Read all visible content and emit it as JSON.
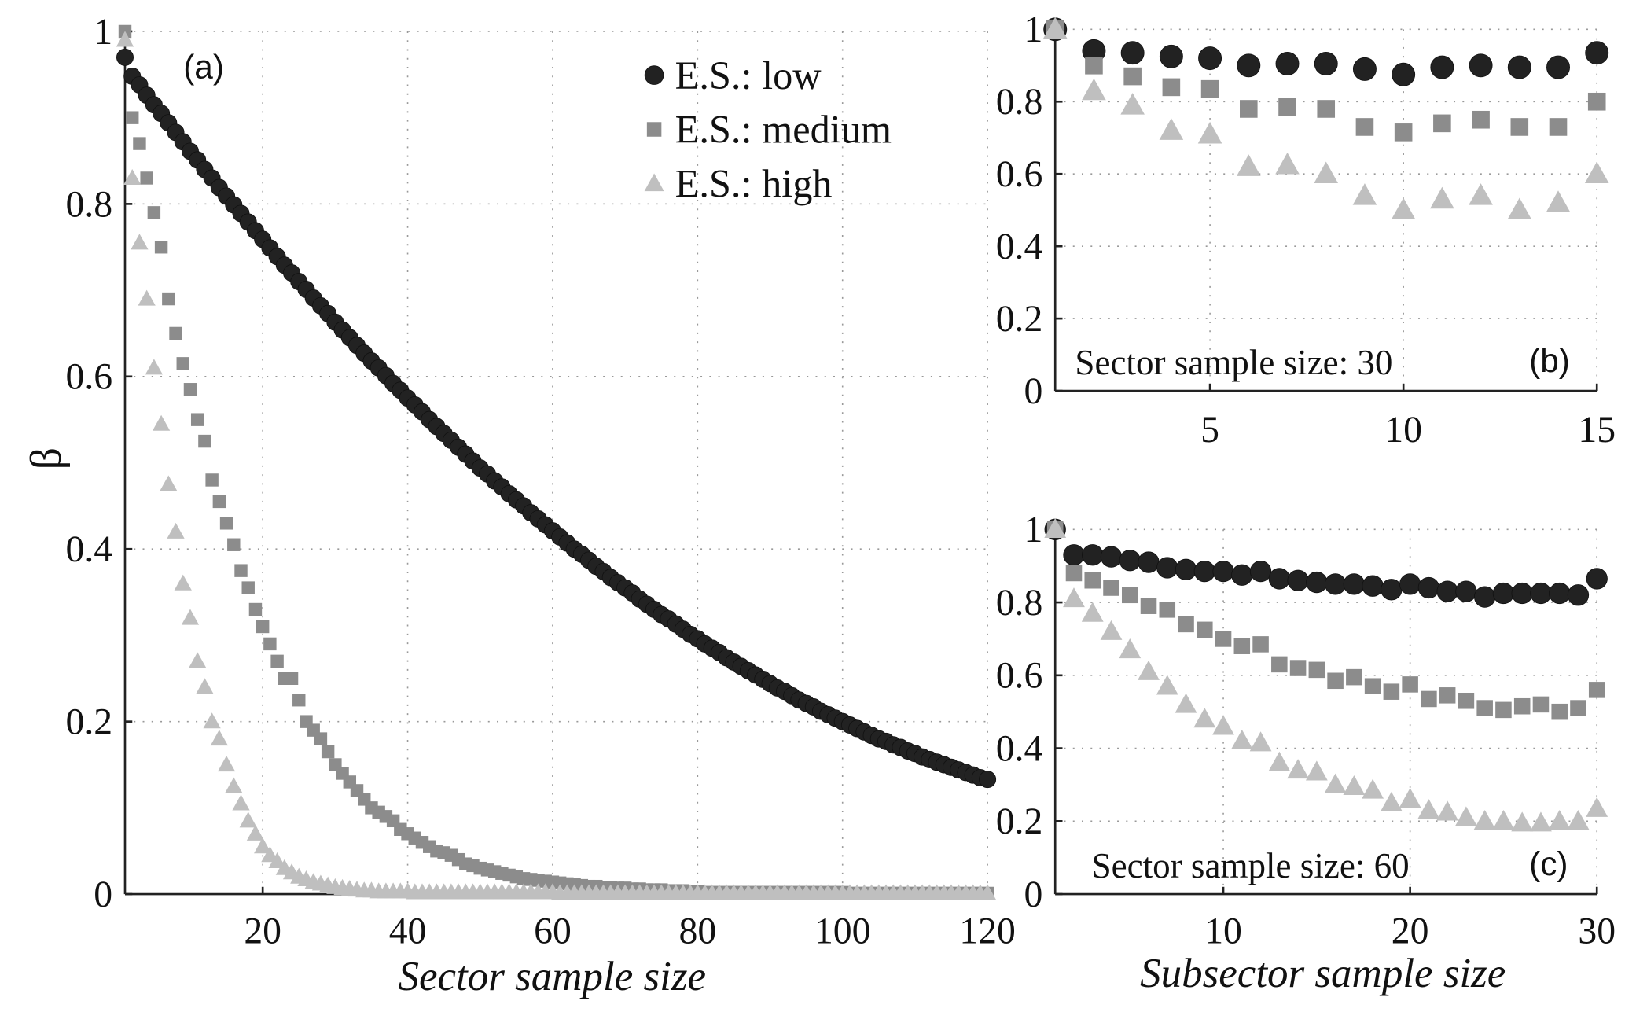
{
  "chart_data": [
    {
      "id": "a",
      "type": "scatter",
      "panel_label": "(a)",
      "xlabel": "Sector sample size",
      "ylabel": "β",
      "xlim": [
        1,
        120
      ],
      "ylim": [
        0,
        1
      ],
      "xticks": [
        20,
        40,
        60,
        80,
        100,
        120
      ],
      "xtick_labels": [
        "20",
        "40",
        "60",
        "80",
        "100",
        "120"
      ],
      "yticks": [
        0,
        0.2,
        0.4,
        0.6,
        0.8,
        1
      ],
      "ytick_labels": [
        "0",
        "0.2",
        "0.4",
        "0.6",
        "0.8",
        "1"
      ],
      "grid": true,
      "legend": {
        "placement": "top-right",
        "entries": [
          "E.S.: low",
          "E.S.: medium",
          "E.S.: high"
        ]
      },
      "x_start": 1,
      "series": [
        {
          "name": "E.S.: low",
          "marker": "circle",
          "color": "#222222",
          "values": [
            0.97,
            0.948,
            0.938,
            0.926,
            0.915,
            0.905,
            0.894,
            0.883,
            0.872,
            0.861,
            0.851,
            0.84,
            0.83,
            0.819,
            0.809,
            0.799,
            0.789,
            0.779,
            0.769,
            0.759,
            0.749,
            0.739,
            0.729,
            0.72,
            0.71,
            0.701,
            0.691,
            0.682,
            0.673,
            0.663,
            0.654,
            0.645,
            0.636,
            0.627,
            0.618,
            0.61,
            0.601,
            0.592,
            0.584,
            0.575,
            0.567,
            0.559,
            0.55,
            0.542,
            0.534,
            0.526,
            0.518,
            0.51,
            0.502,
            0.494,
            0.487,
            0.479,
            0.472,
            0.464,
            0.457,
            0.45,
            0.442,
            0.435,
            0.428,
            0.421,
            0.414,
            0.407,
            0.4,
            0.394,
            0.387,
            0.38,
            0.374,
            0.367,
            0.361,
            0.355,
            0.349,
            0.342,
            0.336,
            0.33,
            0.324,
            0.319,
            0.313,
            0.307,
            0.301,
            0.296,
            0.29,
            0.285,
            0.28,
            0.274,
            0.269,
            0.264,
            0.259,
            0.254,
            0.249,
            0.244,
            0.239,
            0.235,
            0.23,
            0.225,
            0.221,
            0.217,
            0.212,
            0.208,
            0.204,
            0.2,
            0.196,
            0.192,
            0.188,
            0.184,
            0.18,
            0.177,
            0.173,
            0.17,
            0.166,
            0.163,
            0.159,
            0.156,
            0.153,
            0.15,
            0.147,
            0.144,
            0.141,
            0.138,
            0.135,
            0.133
          ]
        },
        {
          "name": "E.S.: medium",
          "marker": "square",
          "color": "#8c8c8c",
          "values": [
            1.0,
            0.9,
            0.87,
            0.83,
            0.79,
            0.75,
            0.69,
            0.65,
            0.615,
            0.585,
            0.55,
            0.525,
            0.48,
            0.455,
            0.43,
            0.405,
            0.375,
            0.355,
            0.33,
            0.31,
            0.29,
            0.27,
            0.25,
            0.25,
            0.225,
            0.2,
            0.19,
            0.18,
            0.165,
            0.15,
            0.14,
            0.13,
            0.12,
            0.11,
            0.1,
            0.095,
            0.09,
            0.085,
            0.075,
            0.07,
            0.065,
            0.06,
            0.055,
            0.05,
            0.048,
            0.045,
            0.04,
            0.035,
            0.033,
            0.03,
            0.028,
            0.026,
            0.024,
            0.022,
            0.02,
            0.018,
            0.017,
            0.016,
            0.015,
            0.014,
            0.013,
            0.012,
            0.011,
            0.01,
            0.009,
            0.009,
            0.008,
            0.008,
            0.007,
            0.007,
            0.006,
            0.006,
            0.005,
            0.005,
            0.005,
            0.004,
            0.004,
            0.004,
            0.003,
            0.003,
            0.002,
            0.002,
            0.002,
            0.002,
            0.002,
            0.002,
            0.002,
            0.002,
            0.002,
            0.002,
            0.002,
            0.002,
            0.002,
            0.002,
            0.002,
            0.002,
            0.002,
            0.002,
            0.002,
            0.002,
            0.001,
            0.001,
            0.001,
            0.001,
            0.001,
            0.001,
            0.001,
            0.001,
            0.001,
            0.001,
            0.001,
            0.001,
            0.001,
            0.001,
            0.001,
            0.001,
            0.001,
            0.001,
            0.001,
            0.001
          ]
        },
        {
          "name": "E.S.: high",
          "marker": "triangle",
          "color": "#bfbfbf",
          "values": [
            0.99,
            0.83,
            0.755,
            0.69,
            0.61,
            0.545,
            0.475,
            0.42,
            0.36,
            0.32,
            0.27,
            0.24,
            0.2,
            0.18,
            0.15,
            0.125,
            0.105,
            0.085,
            0.07,
            0.055,
            0.045,
            0.038,
            0.03,
            0.025,
            0.02,
            0.017,
            0.014,
            0.012,
            0.01,
            0.008,
            0.007,
            0.006,
            0.005,
            0.004,
            0.004,
            0.003,
            0.003,
            0.003,
            0.003,
            0.003,
            0.002,
            0.002,
            0.002,
            0.002,
            0.002,
            0.002,
            0.002,
            0.002,
            0.002,
            0.002,
            0.002,
            0.002,
            0.002,
            0.002,
            0.002,
            0.002,
            0.002,
            0.002,
            0.002,
            0.002,
            0.001,
            0.001,
            0.001,
            0.001,
            0.001,
            0.001,
            0.001,
            0.001,
            0.001,
            0.001,
            0.001,
            0.001,
            0.001,
            0.001,
            0.001,
            0.001,
            0.001,
            0.001,
            0.001,
            0.001,
            0.001,
            0.001,
            0.001,
            0.001,
            0.001,
            0.001,
            0.001,
            0.001,
            0.001,
            0.001,
            0.001,
            0.001,
            0.001,
            0.001,
            0.001,
            0.001,
            0.001,
            0.001,
            0.001,
            0.001,
            0.001,
            0.001,
            0.001,
            0.001,
            0.001,
            0.001,
            0.001,
            0.001,
            0.001,
            0.001,
            0.001,
            0.001,
            0.001,
            0.001,
            0.001,
            0.001,
            0.001,
            0.001,
            0.001,
            0.001
          ]
        }
      ]
    },
    {
      "id": "b",
      "type": "scatter",
      "panel_label": "(b)",
      "annotation": "Sector sample size: 30",
      "xlim": [
        1,
        15
      ],
      "ylim": [
        0,
        1
      ],
      "xticks": [
        5,
        10,
        15
      ],
      "xtick_labels": [
        "5",
        "10",
        "15"
      ],
      "yticks": [
        0,
        0.2,
        0.4,
        0.6,
        0.8,
        1
      ],
      "ytick_labels": [
        "0",
        "0.2",
        "0.4",
        "0.6",
        "0.8",
        "1"
      ],
      "grid": true,
      "x_start": 1,
      "series": [
        {
          "name": "E.S.: low",
          "marker": "circle",
          "color": "#222222",
          "values": [
            1.0,
            0.94,
            0.935,
            0.925,
            0.92,
            0.9,
            0.905,
            0.905,
            0.89,
            0.875,
            0.895,
            0.9,
            0.895,
            0.895,
            0.935
          ]
        },
        {
          "name": "E.S.: medium",
          "marker": "square",
          "color": "#8c8c8c",
          "values": [
            1.0,
            0.9,
            0.87,
            0.84,
            0.835,
            0.78,
            0.785,
            0.78,
            0.73,
            0.715,
            0.74,
            0.75,
            0.73,
            0.73,
            0.8
          ]
        },
        {
          "name": "E.S.: high",
          "marker": "triangle",
          "color": "#bfbfbf",
          "values": [
            1.0,
            0.83,
            0.79,
            0.72,
            0.71,
            0.62,
            0.625,
            0.6,
            0.54,
            0.5,
            0.53,
            0.54,
            0.5,
            0.52,
            0.6
          ]
        }
      ]
    },
    {
      "id": "c",
      "type": "scatter",
      "panel_label": "(c)",
      "annotation": "Sector sample size: 60",
      "xlabel": "Subsector sample size",
      "xlim": [
        1,
        30
      ],
      "ylim": [
        0,
        1
      ],
      "xticks": [
        10,
        20,
        30
      ],
      "xtick_labels": [
        "10",
        "20",
        "30"
      ],
      "yticks": [
        0,
        0.2,
        0.4,
        0.6,
        0.8,
        1
      ],
      "ytick_labels": [
        "0",
        "0.2",
        "0.4",
        "0.6",
        "0.8",
        "1"
      ],
      "grid": true,
      "x_start": 1,
      "series": [
        {
          "name": "E.S.: low",
          "marker": "circle",
          "color": "#222222",
          "values": [
            1.0,
            0.93,
            0.93,
            0.925,
            0.915,
            0.91,
            0.895,
            0.89,
            0.885,
            0.885,
            0.875,
            0.885,
            0.865,
            0.86,
            0.855,
            0.85,
            0.85,
            0.845,
            0.835,
            0.85,
            0.84,
            0.83,
            0.83,
            0.815,
            0.825,
            0.825,
            0.825,
            0.825,
            0.82,
            0.865
          ]
        },
        {
          "name": "E.S.: medium",
          "marker": "square",
          "color": "#8c8c8c",
          "values": [
            1.0,
            0.88,
            0.86,
            0.84,
            0.82,
            0.79,
            0.78,
            0.74,
            0.725,
            0.7,
            0.68,
            0.685,
            0.63,
            0.62,
            0.615,
            0.585,
            0.595,
            0.57,
            0.555,
            0.575,
            0.535,
            0.545,
            0.53,
            0.51,
            0.505,
            0.515,
            0.52,
            0.5,
            0.51,
            0.56
          ]
        },
        {
          "name": "E.S.: high",
          "marker": "triangle",
          "color": "#bfbfbf",
          "values": [
            1.0,
            0.81,
            0.77,
            0.72,
            0.67,
            0.61,
            0.57,
            0.52,
            0.48,
            0.46,
            0.42,
            0.415,
            0.36,
            0.34,
            0.335,
            0.3,
            0.295,
            0.285,
            0.25,
            0.26,
            0.23,
            0.225,
            0.21,
            0.2,
            0.2,
            0.195,
            0.195,
            0.2,
            0.2,
            0.235
          ]
        }
      ]
    }
  ]
}
